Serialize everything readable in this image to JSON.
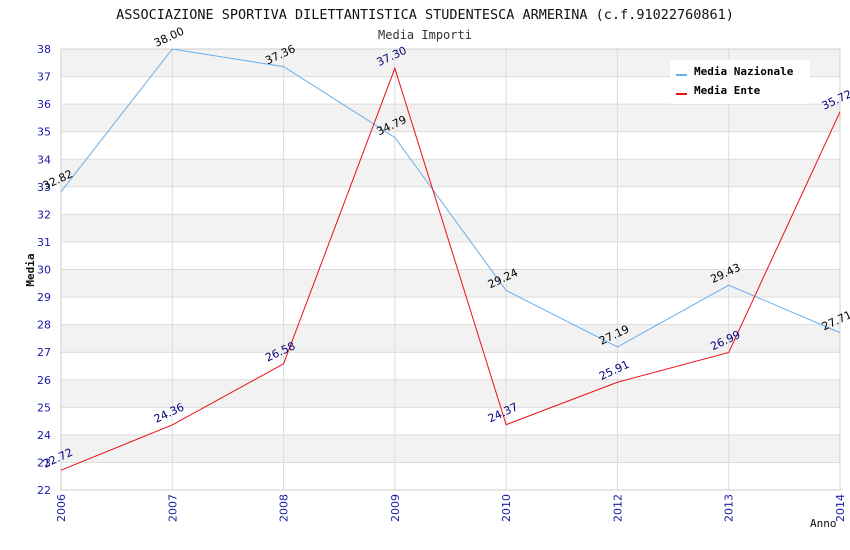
{
  "chart_data": {
    "type": "line",
    "title": "ASSOCIAZIONE SPORTIVA DILETTANTISTICA STUDENTESCA ARMERINA (c.f.91022760861)",
    "subtitle": "Media Importi",
    "xlabel": "Anno",
    "ylabel": "Media",
    "categories": [
      "2006",
      "2007",
      "2008",
      "2009",
      "2010",
      "2012",
      "2013",
      "2014"
    ],
    "ylim": [
      22,
      38
    ],
    "yticks": [
      "22",
      "23",
      "24",
      "25",
      "26",
      "27",
      "28",
      "29",
      "30",
      "31",
      "32",
      "33",
      "34",
      "35",
      "36",
      "37",
      "38"
    ],
    "grid": true,
    "legend_position": "top-right",
    "series": [
      {
        "name": "Media Nazionale",
        "color": "#6aaee8",
        "values": [
          32.82,
          38.0,
          37.36,
          34.79,
          29.24,
          27.19,
          29.43,
          27.71
        ],
        "labels": [
          "32.82",
          "38.00",
          "37.36",
          "34.79",
          "29.24",
          "27.19",
          "29.43",
          "27.71"
        ],
        "label_color": "#000000"
      },
      {
        "name": "Media Ente",
        "color": "#e8101a",
        "values": [
          22.72,
          24.36,
          26.58,
          37.3,
          24.37,
          25.91,
          26.99,
          35.72
        ],
        "labels": [
          "22.72",
          "24.36",
          "26.58",
          "37.30",
          "24.37",
          "25.91",
          "26.99",
          "35.72"
        ],
        "label_color": "#00007a"
      }
    ]
  }
}
